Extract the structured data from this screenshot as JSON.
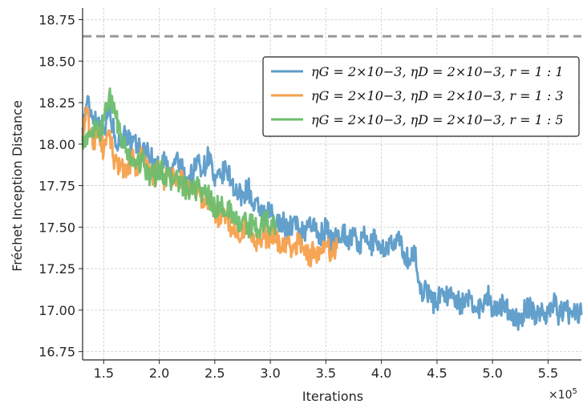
{
  "chart_data": {
    "type": "line",
    "title": "",
    "xlabel": "Iterations",
    "ylabel": "Fréchet Inception Distance",
    "x_multiplier_label": "×10",
    "x_multiplier_exp": "5",
    "xlim": [
      1.31,
      5.8
    ],
    "ylim": [
      16.7,
      18.82
    ],
    "xticks": [
      1.5,
      2.0,
      2.5,
      3.0,
      3.5,
      4.0,
      4.5,
      5.0,
      5.5
    ],
    "xtick_labels": [
      "1.5",
      "2.0",
      "2.5",
      "3.0",
      "3.5",
      "4.0",
      "4.5",
      "5.0",
      "5.5"
    ],
    "yticks": [
      16.75,
      17.0,
      17.25,
      17.5,
      17.75,
      18.0,
      18.25,
      18.5,
      18.75
    ],
    "ytick_labels": [
      "16.75",
      "17.00",
      "17.25",
      "17.50",
      "17.75",
      "18.00",
      "18.25",
      "18.50",
      "18.75"
    ],
    "grid": true,
    "legend_position": "upper-right",
    "baseline": {
      "y": 18.65,
      "color": "#999999",
      "style": "dashed"
    },
    "series": [
      {
        "name": "ηG = 2×10−3, ηD = 2×10−3, r = 1 : 1",
        "color": "#5b9bc8",
        "x": [
          1.31,
          1.35,
          1.4,
          1.45,
          1.5,
          1.55,
          1.6,
          1.65,
          1.7,
          1.75,
          1.8,
          1.85,
          1.9,
          1.95,
          2.0,
          2.05,
          2.1,
          2.15,
          2.2,
          2.25,
          2.3,
          2.35,
          2.4,
          2.45,
          2.5,
          2.55,
          2.6,
          2.65,
          2.7,
          2.75,
          2.8,
          2.85,
          2.9,
          2.95,
          3.0,
          3.05,
          3.1,
          3.15,
          3.2,
          3.25,
          3.3,
          3.35,
          3.4,
          3.45,
          3.5,
          3.55,
          3.6,
          3.65,
          3.7,
          3.75,
          3.8,
          3.85,
          3.9,
          3.95,
          4.0,
          4.05,
          4.1,
          4.15,
          4.2,
          4.25,
          4.3,
          4.35,
          4.4,
          4.45,
          4.5,
          4.55,
          4.6,
          4.65,
          4.7,
          4.75,
          4.8,
          4.85,
          4.9,
          4.95,
          5.0,
          5.05,
          5.1,
          5.15,
          5.2,
          5.25,
          5.3,
          5.35,
          5.4,
          5.45,
          5.5,
          5.55,
          5.6,
          5.65,
          5.7,
          5.75,
          5.8
        ],
        "values": [
          18.1,
          18.25,
          18.17,
          18.15,
          18.1,
          18.2,
          18.05,
          18.0,
          18.08,
          17.98,
          18.0,
          17.95,
          17.97,
          17.88,
          17.85,
          17.9,
          17.8,
          17.92,
          17.85,
          17.78,
          17.82,
          17.9,
          17.85,
          17.95,
          17.75,
          17.8,
          17.85,
          17.78,
          17.7,
          17.68,
          17.75,
          17.6,
          17.62,
          17.55,
          17.6,
          17.5,
          17.55,
          17.48,
          17.52,
          17.5,
          17.45,
          17.55,
          17.48,
          17.45,
          17.5,
          17.4,
          17.45,
          17.48,
          17.42,
          17.45,
          17.38,
          17.44,
          17.38,
          17.45,
          17.35,
          17.4,
          17.38,
          17.42,
          17.35,
          17.3,
          17.35,
          17.1,
          17.15,
          17.05,
          17.05,
          17.12,
          17.08,
          17.1,
          17.05,
          17.02,
          17.08,
          17.0,
          17.03,
          17.1,
          17.02,
          16.98,
          17.05,
          17.0,
          16.95,
          16.92,
          17.02,
          17.0,
          16.97,
          17.0,
          16.98,
          17.05,
          16.97,
          17.0,
          16.98,
          17.0,
          16.97
        ]
      },
      {
        "name": "ηG = 2×10−3, ηD = 2×10−3, r = 1 : 3",
        "color": "#f5a04c",
        "x": [
          1.31,
          1.35,
          1.4,
          1.45,
          1.5,
          1.55,
          1.6,
          1.65,
          1.7,
          1.75,
          1.8,
          1.85,
          1.9,
          1.95,
          2.0,
          2.05,
          2.1,
          2.15,
          2.2,
          2.25,
          2.3,
          2.35,
          2.4,
          2.45,
          2.5,
          2.55,
          2.6,
          2.65,
          2.7,
          2.75,
          2.8,
          2.85,
          2.9,
          2.95,
          3.0,
          3.05,
          3.1,
          3.15,
          3.2,
          3.25,
          3.3,
          3.35,
          3.4,
          3.45,
          3.5,
          3.55,
          3.6
        ],
        "values": [
          18.05,
          18.2,
          18.0,
          18.1,
          17.95,
          18.05,
          17.9,
          17.88,
          17.8,
          17.92,
          17.85,
          17.95,
          17.82,
          17.8,
          17.85,
          17.78,
          17.82,
          17.75,
          17.8,
          17.72,
          17.7,
          17.75,
          17.62,
          17.68,
          17.6,
          17.55,
          17.58,
          17.5,
          17.45,
          17.5,
          17.48,
          17.45,
          17.4,
          17.45,
          17.42,
          17.45,
          17.38,
          17.4,
          17.35,
          17.42,
          17.38,
          17.32,
          17.36,
          17.34,
          17.38,
          17.35,
          17.37
        ]
      },
      {
        "name": "ηG = 2×10−3, ηD = 2×10−3, r = 1 : 5",
        "color": "#6dbd6d",
        "x": [
          1.31,
          1.35,
          1.4,
          1.45,
          1.5,
          1.55,
          1.6,
          1.65,
          1.7,
          1.75,
          1.8,
          1.85,
          1.9,
          1.95,
          2.0,
          2.05,
          2.1,
          2.15,
          2.2,
          2.25,
          2.3,
          2.35,
          2.4,
          2.45,
          2.5,
          2.55,
          2.6,
          2.65,
          2.7,
          2.75,
          2.8,
          2.85,
          2.9,
          2.95,
          3.0,
          3.05
        ],
        "values": [
          18.05,
          18.0,
          18.1,
          18.05,
          18.15,
          18.3,
          18.2,
          18.05,
          17.95,
          17.92,
          17.88,
          17.9,
          17.83,
          17.8,
          17.85,
          17.82,
          17.78,
          17.8,
          17.75,
          17.72,
          17.7,
          17.75,
          17.7,
          17.68,
          17.6,
          17.65,
          17.58,
          17.6,
          17.52,
          17.55,
          17.5,
          17.52,
          17.48,
          17.55,
          17.5,
          17.52
        ]
      }
    ]
  }
}
